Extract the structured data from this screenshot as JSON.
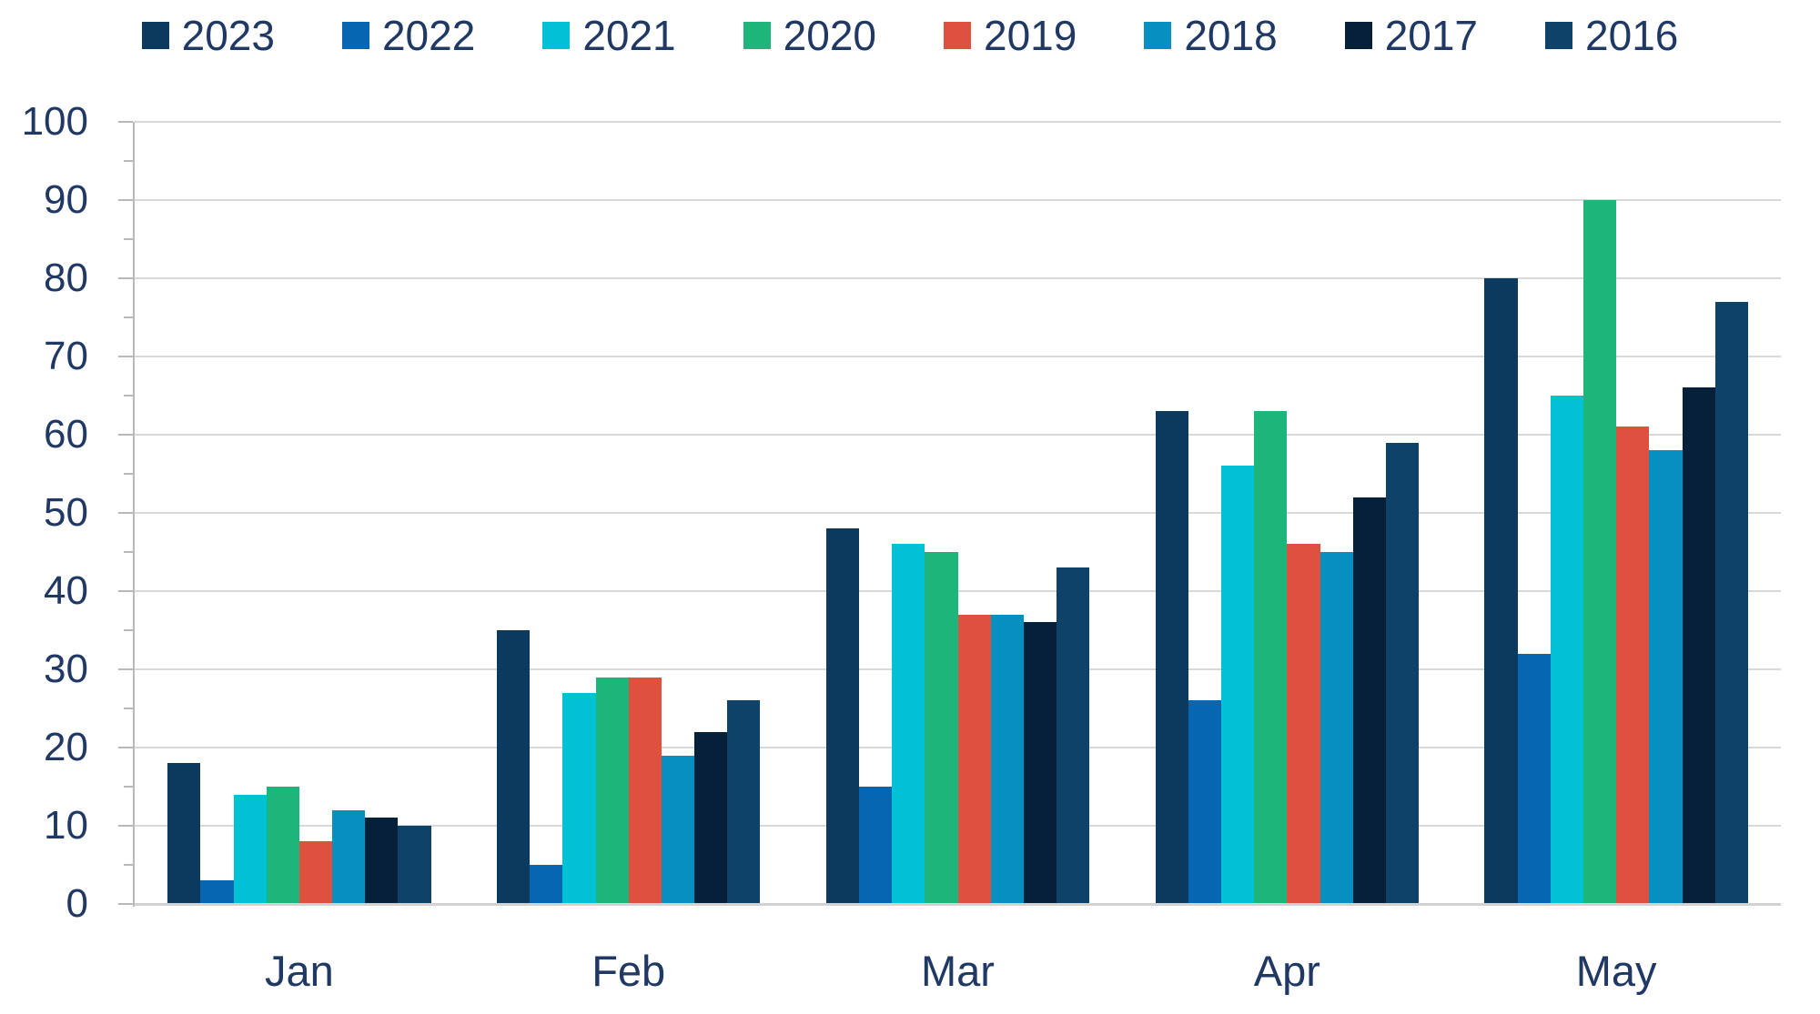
{
  "chart_data": {
    "type": "bar",
    "title": "",
    "xlabel": "",
    "ylabel": "",
    "categories": [
      "Jan",
      "Feb",
      "Mar",
      "Apr",
      "May"
    ],
    "series": [
      {
        "name": "2023",
        "color": "#0B3A5E",
        "values": [
          18,
          35,
          48,
          63,
          80
        ]
      },
      {
        "name": "2022",
        "color": "#0766B1",
        "values": [
          3,
          5,
          15,
          26,
          32
        ]
      },
      {
        "name": "2021",
        "color": "#00C2D4",
        "values": [
          14,
          27,
          46,
          56,
          65
        ]
      },
      {
        "name": "2020",
        "color": "#1EB57A",
        "values": [
          15,
          29,
          45,
          63,
          90
        ]
      },
      {
        "name": "2019",
        "color": "#DD513E",
        "values": [
          8,
          29,
          37,
          46,
          61
        ]
      },
      {
        "name": "2018",
        "color": "#0590BF",
        "values": [
          12,
          19,
          37,
          45,
          58
        ]
      },
      {
        "name": "2017",
        "color": "#06203A",
        "values": [
          11,
          22,
          36,
          52,
          66
        ]
      },
      {
        "name": "2016",
        "color": "#0E4269",
        "values": [
          10,
          26,
          43,
          59,
          77
        ]
      }
    ],
    "ylim": [
      0,
      100
    ],
    "yticks": [
      0,
      10,
      20,
      30,
      40,
      50,
      60,
      70,
      80,
      90,
      100
    ],
    "minor_tick_step": 5,
    "grid": true,
    "legend_position": "top",
    "colors": {
      "label_text": "#1F3864",
      "gridline": "#D9D9D9",
      "axis_line": "#B9B9B9",
      "x_axis_line": "#D2D2D2",
      "background": "#FFFFFF"
    }
  }
}
